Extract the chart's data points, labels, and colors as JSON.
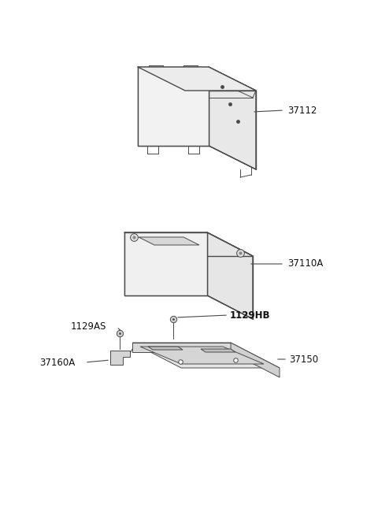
{
  "bg_color": "#ffffff",
  "line_color": "#4a4a4a",
  "fig_width": 4.8,
  "fig_height": 6.55,
  "dpi": 100,
  "parts": [
    {
      "id": "37112",
      "label": "37112"
    },
    {
      "id": "37110A",
      "label": "37110A"
    },
    {
      "id": "37150",
      "label": "37150"
    },
    {
      "id": "37160A",
      "label": "37160A"
    },
    {
      "id": "1129AS",
      "label": "1129AS"
    },
    {
      "id": "1129HB",
      "label": "1129HB"
    }
  ]
}
